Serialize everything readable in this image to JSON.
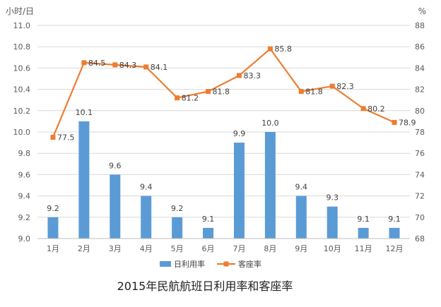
{
  "chart_data": {
    "type": "bar+line",
    "title": "2015年民航航班日利用率和客座率",
    "categories": [
      "1月",
      "2月",
      "3月",
      "4月",
      "5月",
      "6月",
      "7月",
      "8月",
      "9月",
      "10月",
      "11月",
      "12月"
    ],
    "series": [
      {
        "name": "日利用率",
        "type": "bar",
        "axis": "left",
        "values": [
          9.2,
          10.1,
          9.6,
          9.4,
          9.2,
          9.1,
          9.9,
          10.0,
          9.4,
          9.3,
          9.1,
          9.1
        ],
        "labels": [
          "9.2",
          "10.1",
          "9.6",
          "9.4",
          "9.2",
          "9.1",
          "9.9",
          "10.0",
          "9.4",
          "9.3",
          "9.1",
          "9.1"
        ]
      },
      {
        "name": "客座率",
        "type": "line",
        "axis": "right",
        "values": [
          77.5,
          84.5,
          84.3,
          84.1,
          81.2,
          81.8,
          83.3,
          85.8,
          81.8,
          82.3,
          80.2,
          78.9
        ],
        "labels": [
          "77.5",
          "84.5",
          "84.3",
          "84.1",
          "81.2",
          "81.8",
          "83.3",
          "85.8",
          "81.8",
          "82.3",
          "80.2",
          "78.9"
        ]
      }
    ],
    "ylabel_left": "小时/日",
    "ylabel_right": "%",
    "ylim_left": [
      9.0,
      11.0
    ],
    "yticks_left": [
      "9.0",
      "9.2",
      "9.4",
      "9.6",
      "9.8",
      "10.0",
      "10.2",
      "10.4",
      "10.6",
      "10.8",
      "11.0"
    ],
    "ylim_right": [
      68,
      88
    ],
    "yticks_right": [
      "68",
      "70",
      "72",
      "74",
      "76",
      "78",
      "80",
      "82",
      "84",
      "86",
      "88"
    ],
    "grid": true,
    "legend_position": "bottom",
    "colors": {
      "bar": "#5B9BD5",
      "line": "#ED7D31",
      "grid": "#D9D9D9",
      "axis": "#BFBFBF"
    }
  }
}
